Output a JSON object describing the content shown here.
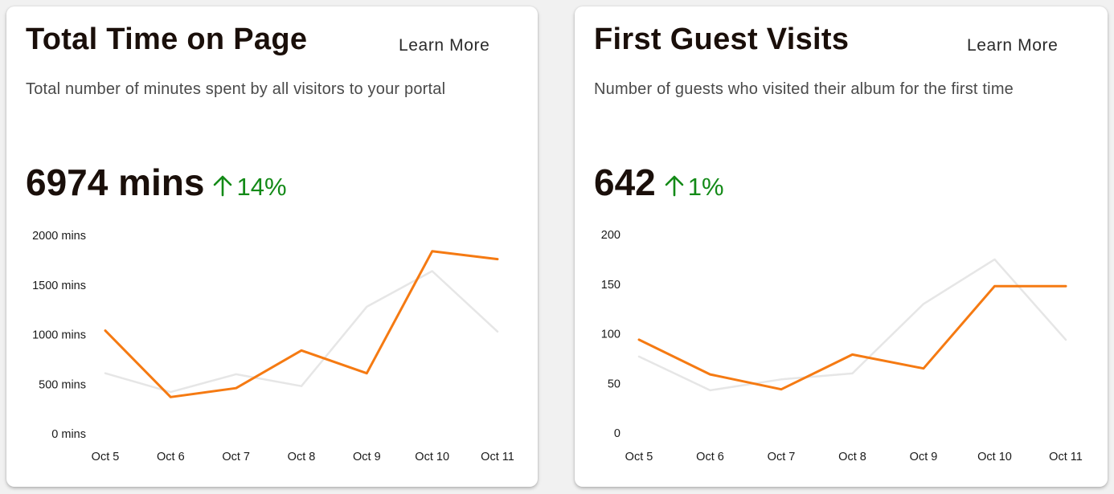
{
  "cards": [
    {
      "title": "Total Time on Page",
      "learn_more": "Learn More",
      "subtitle": "Total number of minutes spent by all visitors to your portal",
      "metric": {
        "value": "6974 mins",
        "change": "14%",
        "direction": "up"
      }
    },
    {
      "title": "First Guest Visits",
      "learn_more": "Learn More",
      "subtitle": "Number of guests who visited their album for the first time",
      "metric": {
        "value": "642",
        "change": "1%",
        "direction": "up"
      }
    }
  ],
  "colors": {
    "current_series": "#f57a12",
    "previous_series": "#e6e6e6",
    "positive_change": "#138a17"
  },
  "chart_data": [
    {
      "type": "line",
      "categories": [
        "Oct 5",
        "Oct 6",
        "Oct 7",
        "Oct 8",
        "Oct 9",
        "Oct 10",
        "Oct 11"
      ],
      "y_ticks": [
        "0 mins",
        "500 mins",
        "1000 mins",
        "1500 mins",
        "2000 mins"
      ],
      "ylim": [
        0,
        2000
      ],
      "grid": false,
      "series": [
        {
          "values": [
            610,
            420,
            600,
            480,
            1280,
            1640,
            1030
          ],
          "color": "#e6e6e6"
        },
        {
          "values": [
            1040,
            370,
            460,
            840,
            610,
            1840,
            1760
          ],
          "color": "#f57a12"
        }
      ]
    },
    {
      "type": "line",
      "categories": [
        "Oct 5",
        "Oct 6",
        "Oct 7",
        "Oct 8",
        "Oct 9",
        "Oct 10",
        "Oct 11"
      ],
      "y_ticks": [
        "0",
        "50",
        "100",
        "150",
        "200"
      ],
      "ylim": [
        0,
        200
      ],
      "grid": false,
      "series": [
        {
          "values": [
            77,
            43,
            54,
            60,
            130,
            175,
            94
          ],
          "color": "#e6e6e6"
        },
        {
          "values": [
            94,
            59,
            44,
            79,
            65,
            148,
            148
          ],
          "color": "#f57a12"
        }
      ]
    }
  ]
}
